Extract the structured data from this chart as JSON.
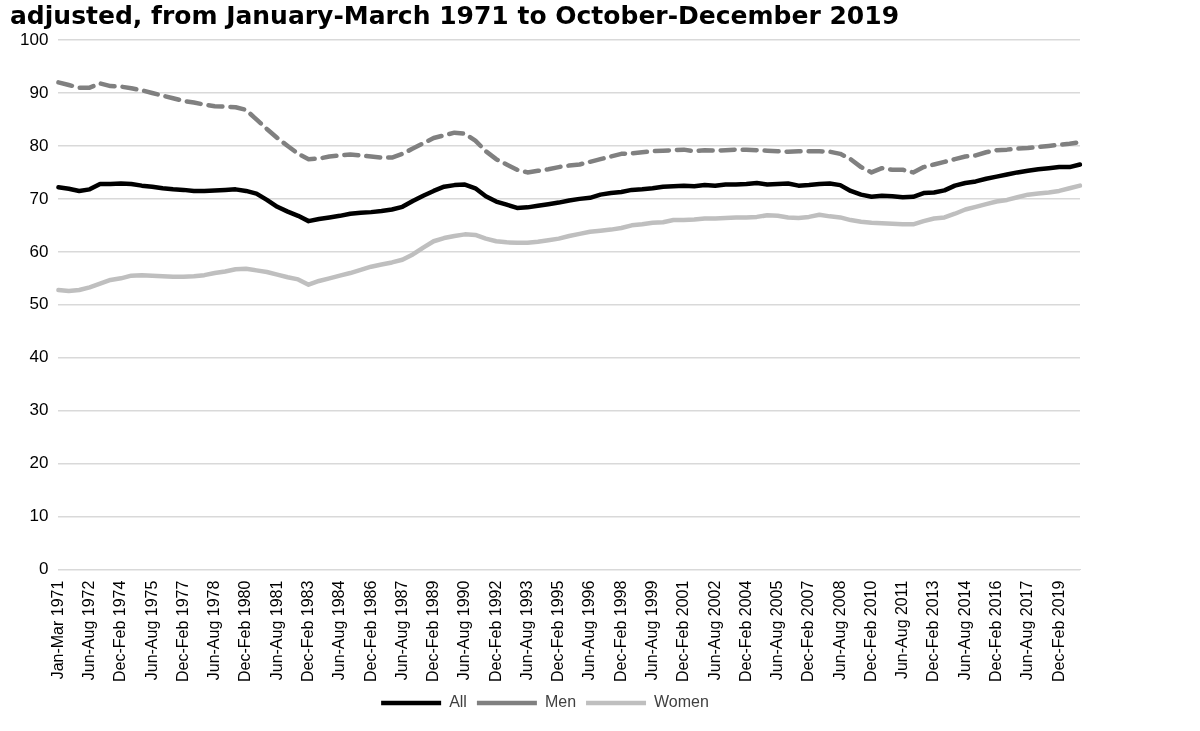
{
  "chart_data": {
    "type": "line",
    "title": "adjusted, from January-March 1971 to October-December 2019",
    "categories": [
      "Jan-Mar 1971",
      null,
      null,
      "Jun-Aug 1972",
      null,
      null,
      "Dec-Feb 1974",
      null,
      null,
      "Jun-Aug 1975",
      null,
      null,
      "Dec-Feb 1977",
      null,
      null,
      "Jun-Aug 1978",
      null,
      null,
      "Dec-Feb 1980",
      null,
      null,
      "Jun-Aug 1981",
      null,
      null,
      "Dec-Feb 1983",
      null,
      null,
      "Jun-Aug 1984",
      null,
      null,
      "Dec-Feb 1986",
      null,
      null,
      "Jun-Aug 1987",
      null,
      null,
      "Dec-Feb 1989",
      null,
      null,
      "Jun-Aug 1990",
      null,
      null,
      "Dec-Feb 1992",
      null,
      null,
      "Jun-Aug 1993",
      null,
      null,
      "Dec-Feb 1995",
      null,
      null,
      "Jun-Aug 1996",
      null,
      null,
      "Dec-Feb 1998",
      null,
      null,
      "Jun-Aug 1999",
      null,
      null,
      "Dec-Feb 2001",
      null,
      null,
      "Jun-Aug 2002",
      null,
      null,
      "Dec-Feb 2004",
      null,
      null,
      "Jun-Aug 2005",
      null,
      null,
      "Dec-Feb 2007",
      null,
      null,
      "Jun-Aug 2008",
      null,
      null,
      "Dec-Feb 2010",
      null,
      null,
      "Jun-Aug 2011",
      null,
      null,
      "Dec-Feb 2013",
      null,
      null,
      "Jun-Aug 2014",
      null,
      null,
      "Dec-Feb 2016",
      null,
      null,
      "Jun-Aug 2017",
      null,
      null,
      "Dec-Feb 2019",
      null,
      null
    ],
    "series": [
      {
        "name": "All",
        "color": "#000000",
        "line_style": "solid",
        "values": [
          72.2,
          71.9,
          71.5,
          71.8,
          72.8,
          72.8,
          72.9,
          72.8,
          72.5,
          72.3,
          72.0,
          71.8,
          71.7,
          71.5,
          71.5,
          71.6,
          71.7,
          71.8,
          71.5,
          71.0,
          69.8,
          68.5,
          67.6,
          66.8,
          65.8,
          66.2,
          66.5,
          66.8,
          67.2,
          67.4,
          67.5,
          67.7,
          68.0,
          68.5,
          69.6,
          70.6,
          71.5,
          72.3,
          72.6,
          72.7,
          72.0,
          70.5,
          69.5,
          68.9,
          68.3,
          68.4,
          68.7,
          69.0,
          69.3,
          69.7,
          70.0,
          70.2,
          70.8,
          71.1,
          71.3,
          71.7,
          71.8,
          72.0,
          72.3,
          72.4,
          72.5,
          72.4,
          72.6,
          72.5,
          72.7,
          72.7,
          72.8,
          73.0,
          72.7,
          72.8,
          72.9,
          72.5,
          72.6,
          72.8,
          72.9,
          72.6,
          71.5,
          70.8,
          70.4,
          70.6,
          70.5,
          70.3,
          70.4,
          71.1,
          71.2,
          71.6,
          72.5,
          73.0,
          73.3,
          73.8,
          74.2,
          74.6,
          75.0,
          75.3,
          75.6,
          75.8,
          76.0,
          76.0,
          76.5
        ]
      },
      {
        "name": "Men",
        "color": "#808080",
        "line_style": "dashed",
        "values": [
          92.0,
          91.5,
          91.0,
          91.0,
          91.8,
          91.3,
          91.2,
          90.9,
          90.5,
          90.0,
          89.5,
          89.0,
          88.5,
          88.2,
          87.8,
          87.5,
          87.4,
          87.3,
          86.8,
          85.0,
          83.2,
          81.5,
          80.0,
          78.5,
          77.5,
          77.6,
          78.0,
          78.2,
          78.4,
          78.2,
          78.0,
          77.8,
          77.8,
          78.5,
          79.5,
          80.5,
          81.5,
          82.0,
          82.5,
          82.3,
          81.0,
          79.0,
          77.5,
          76.5,
          75.5,
          75.0,
          75.3,
          75.6,
          76.0,
          76.3,
          76.5,
          77.0,
          77.5,
          78.0,
          78.5,
          78.6,
          78.8,
          79.0,
          79.1,
          79.2,
          79.3,
          79.0,
          79.2,
          79.1,
          79.2,
          79.3,
          79.3,
          79.2,
          79.1,
          79.0,
          78.9,
          79.0,
          79.0,
          79.0,
          78.9,
          78.5,
          77.5,
          76.0,
          75.0,
          75.8,
          75.5,
          75.5,
          75.0,
          76.0,
          76.5,
          77.0,
          77.5,
          78.0,
          78.2,
          78.8,
          79.2,
          79.3,
          79.5,
          79.6,
          79.8,
          80.0,
          80.2,
          80.4,
          80.7
        ]
      },
      {
        "name": "Women",
        "color": "#bfbfbf",
        "line_style": "solid",
        "values": [
          52.8,
          52.6,
          52.8,
          53.3,
          54.0,
          54.7,
          55.0,
          55.5,
          55.6,
          55.5,
          55.4,
          55.3,
          55.3,
          55.4,
          55.6,
          56.0,
          56.3,
          56.7,
          56.8,
          56.5,
          56.2,
          55.7,
          55.2,
          54.8,
          53.8,
          54.5,
          55.0,
          55.5,
          56.0,
          56.6,
          57.2,
          57.6,
          58.0,
          58.5,
          59.5,
          60.8,
          62.0,
          62.6,
          63.0,
          63.3,
          63.2,
          62.5,
          62.0,
          61.8,
          61.7,
          61.7,
          61.9,
          62.2,
          62.5,
          63.0,
          63.4,
          63.8,
          64.0,
          64.2,
          64.5,
          65.0,
          65.2,
          65.5,
          65.6,
          66.0,
          66.0,
          66.1,
          66.3,
          66.3,
          66.4,
          66.5,
          66.5,
          66.6,
          66.9,
          66.8,
          66.5,
          66.4,
          66.6,
          67.0,
          66.7,
          66.5,
          66.0,
          65.7,
          65.5,
          65.4,
          65.3,
          65.2,
          65.2,
          65.8,
          66.3,
          66.5,
          67.2,
          68.0,
          68.5,
          69.0,
          69.5,
          69.8,
          70.3,
          70.8,
          71.0,
          71.2,
          71.5,
          72.0,
          72.5
        ]
      }
    ],
    "ylim": [
      0,
      100
    ],
    "yticks": [
      0,
      10,
      20,
      30,
      40,
      50,
      60,
      70,
      80,
      90,
      100
    ],
    "grid": "y",
    "legend": "bottom",
    "marker": "none"
  }
}
